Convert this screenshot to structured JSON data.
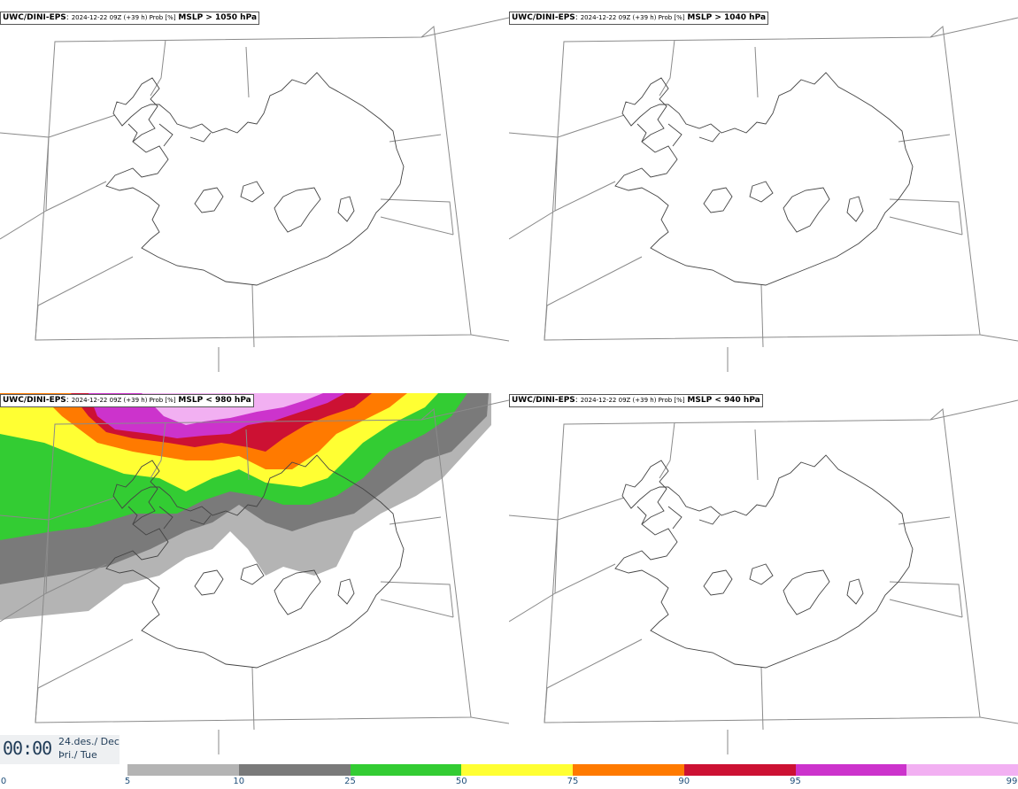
{
  "panels": [
    {
      "model": "UWC/DINI-EPS",
      "run": "2024-12-22 09Z (+39 h) Prob [%]",
      "field": "MSLP > 1050 hPa"
    },
    {
      "model": "UWC/DINI-EPS",
      "run": "2024-12-22 09Z (+39 h) Prob [%]",
      "field": "MSLP > 1040 hPa"
    },
    {
      "model": "UWC/DINI-EPS",
      "run": "2024-12-22 09Z (+39 h) Prob [%]",
      "field": "MSLP < 980 hPa"
    },
    {
      "model": "UWC/DINI-EPS",
      "run": "2024-12-22 09Z (+39 h) Prob [%]",
      "field": "MSLP < 940 hPa"
    }
  ],
  "time": {
    "clock": "00:00",
    "date_line1": "24.des./ Dec",
    "date_line2": "Þri./ Tue"
  },
  "legend": {
    "ticks": [
      "0",
      "5",
      "10",
      "25",
      "50",
      "75",
      "90",
      "95",
      "99"
    ],
    "colors": [
      "#b4b4b4",
      "#7a7a7a",
      "#33cc33",
      "#ffff33",
      "#ff7a00",
      "#cc1133",
      "#cc33cc",
      "#f2b0f2"
    ]
  }
}
